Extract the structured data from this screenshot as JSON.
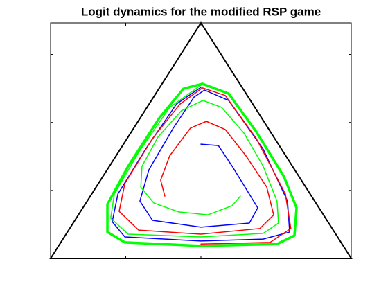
{
  "chart_data": {
    "type": "line",
    "title": "Logit dynamics for the modified RSP game",
    "xlim": [
      0,
      1
    ],
    "ylim": [
      0,
      0.866
    ],
    "xticks": [
      0.25,
      0.5,
      0.75
    ],
    "yticks": [
      0.25,
      0.5,
      0.75
    ],
    "triangle_color": "#000000",
    "series": [
      {
        "color": "#00ff00",
        "linewidth": 3.5,
        "x": [
          0.505,
          0.592,
          0.684,
          0.776,
          0.818,
          0.811,
          0.753,
          0.5,
          0.247,
          0.189,
          0.189,
          0.258,
          0.362,
          0.442,
          0.505
        ],
        "values": [
          0.642,
          0.606,
          0.466,
          0.301,
          0.186,
          0.084,
          0.053,
          0.046,
          0.059,
          0.097,
          0.199,
          0.339,
          0.517,
          0.624,
          0.642
        ]
      },
      {
        "color": "#0000ff",
        "linewidth": 1.5,
        "x": [
          0.5,
          0.558,
          0.604,
          0.689,
          0.661,
          0.5,
          0.339,
          0.297,
          0.327,
          0.408,
          0.477,
          0.512,
          0.592,
          0.707,
          0.788,
          0.795,
          0.707,
          0.5,
          0.247,
          0.205,
          0.224,
          0.316,
          0.419,
          0.5
        ],
        "values": [
          0.42,
          0.415,
          0.339,
          0.186,
          0.13,
          0.115,
          0.14,
          0.211,
          0.326,
          0.479,
          0.593,
          0.619,
          0.581,
          0.402,
          0.211,
          0.097,
          0.071,
          0.064,
          0.079,
          0.135,
          0.237,
          0.402,
          0.568,
          0.629
        ]
      },
      {
        "color": "#ff0000",
        "linewidth": 1.5,
        "x": [
          0.38,
          0.366,
          0.396,
          0.465,
          0.518,
          0.581,
          0.65,
          0.719,
          0.742,
          0.696,
          0.5,
          0.293,
          0.228,
          0.247,
          0.339,
          0.431,
          0.505,
          0.581,
          0.684,
          0.781,
          0.799,
          0.73,
          0.5
        ],
        "values": [
          0.229,
          0.288,
          0.377,
          0.479,
          0.504,
          0.474,
          0.377,
          0.262,
          0.16,
          0.11,
          0.089,
          0.104,
          0.173,
          0.275,
          0.441,
          0.568,
          0.627,
          0.599,
          0.441,
          0.237,
          0.11,
          0.059,
          0.053
        ]
      },
      {
        "color": "#00ff00",
        "linewidth": 1.5,
        "x": [
          0.631,
          0.604,
          0.523,
          0.426,
          0.343,
          0.3,
          0.304,
          0.357,
          0.435,
          0.507,
          0.569,
          0.643,
          0.707,
          0.753,
          0.758,
          0.707,
          0.5,
          0.258,
          0.2,
          0.212,
          0.293,
          0.396,
          0.5
        ],
        "values": [
          0.229,
          0.194,
          0.16,
          0.171,
          0.204,
          0.262,
          0.339,
          0.446,
          0.543,
          0.581,
          0.555,
          0.461,
          0.339,
          0.211,
          0.13,
          0.092,
          0.079,
          0.089,
          0.148,
          0.237,
          0.39,
          0.555,
          0.637
        ]
      }
    ]
  }
}
